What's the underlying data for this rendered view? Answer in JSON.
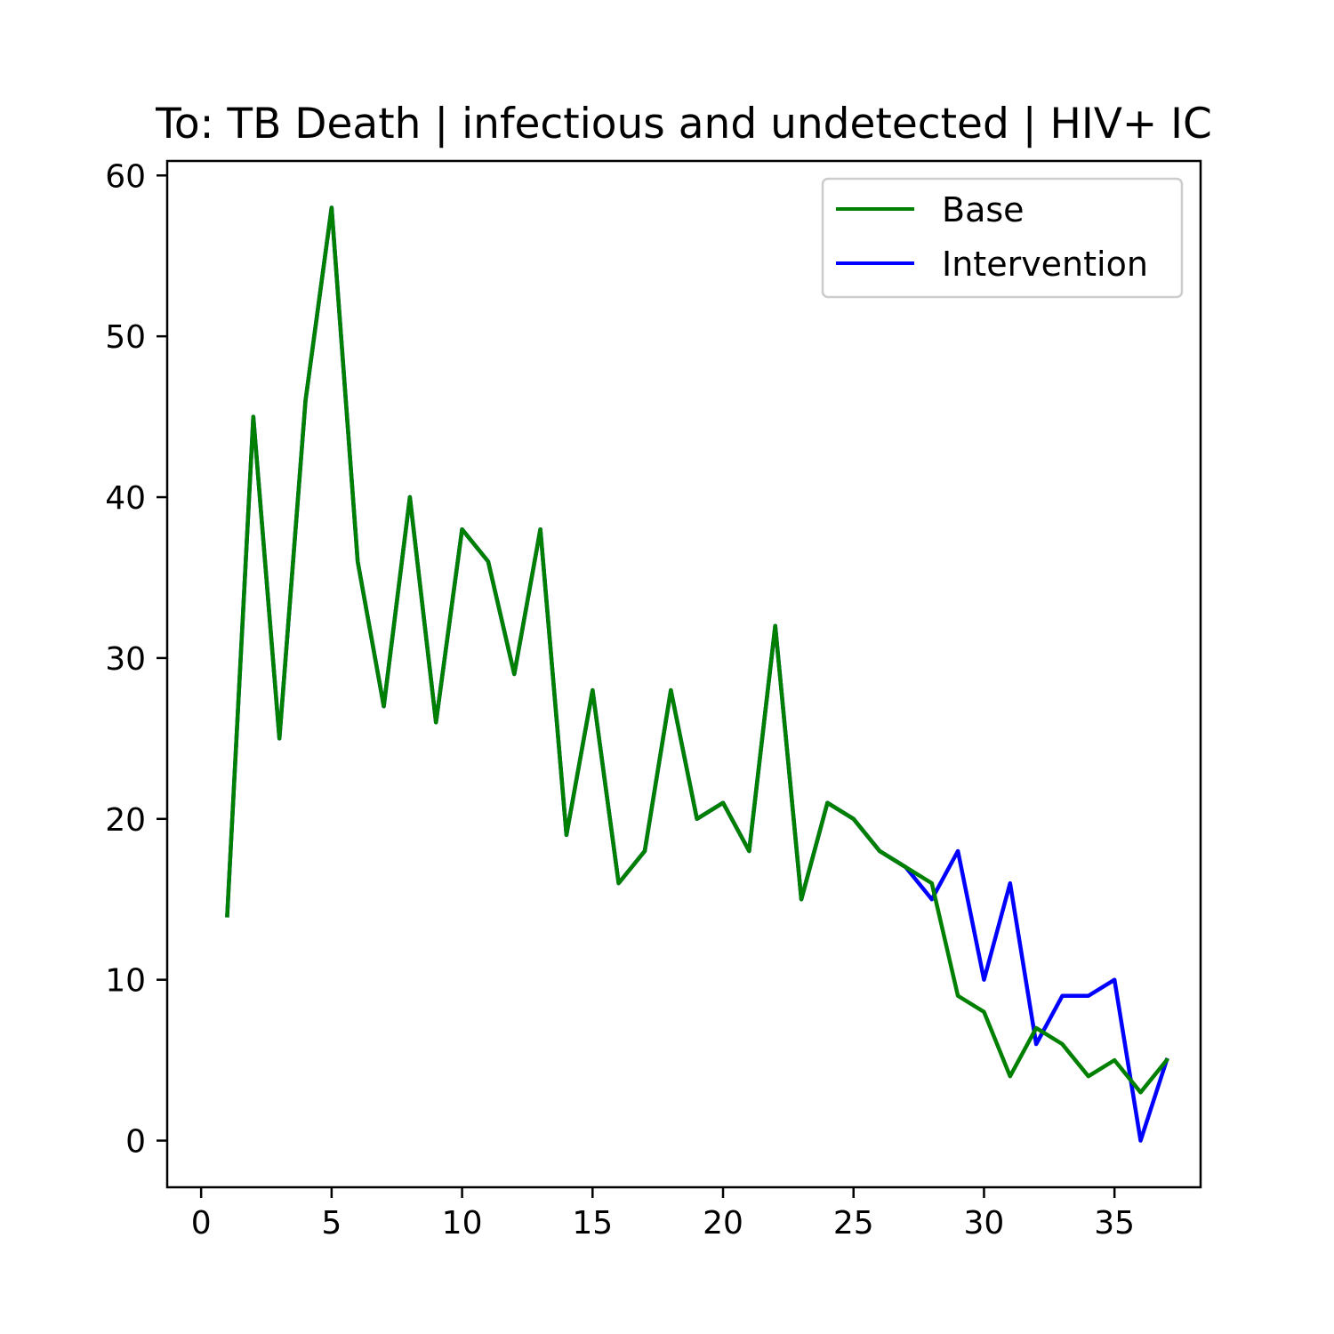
{
  "chart_data": {
    "type": "line",
    "title": "To: TB Death | infectious and undetected | HIV+ IC",
    "xlabel": "",
    "ylabel": "",
    "xlim": [
      -1.3,
      38.3
    ],
    "ylim": [
      -2.9,
      60.9
    ],
    "xticks": [
      0,
      5,
      10,
      15,
      20,
      25,
      30,
      35
    ],
    "yticks": [
      0,
      10,
      20,
      30,
      40,
      50,
      60
    ],
    "grid": false,
    "legend_position": "top-right",
    "x": [
      1,
      2,
      3,
      4,
      5,
      6,
      7,
      8,
      9,
      10,
      11,
      12,
      13,
      14,
      15,
      16,
      17,
      18,
      19,
      20,
      21,
      22,
      23,
      24,
      25,
      26,
      27,
      28,
      29,
      30,
      31,
      32,
      33,
      34,
      35,
      36,
      37
    ],
    "series": [
      {
        "name": "Base",
        "color": "#008000",
        "values": [
          14,
          45,
          25,
          46,
          58,
          36,
          27,
          40,
          26,
          38,
          36,
          29,
          38,
          19,
          28,
          16,
          18,
          28,
          20,
          21,
          18,
          32,
          15,
          21,
          20,
          18,
          17,
          16,
          9,
          8,
          4,
          7,
          6,
          4,
          5,
          3,
          5
        ]
      },
      {
        "name": "Intervention",
        "color": "#0000ff",
        "values": [
          14,
          45,
          25,
          46,
          58,
          36,
          27,
          40,
          26,
          38,
          36,
          29,
          38,
          19,
          28,
          16,
          18,
          28,
          20,
          21,
          18,
          32,
          15,
          21,
          20,
          18,
          17,
          15,
          18,
          10,
          16,
          6,
          9,
          9,
          10,
          0,
          5
        ]
      }
    ]
  }
}
